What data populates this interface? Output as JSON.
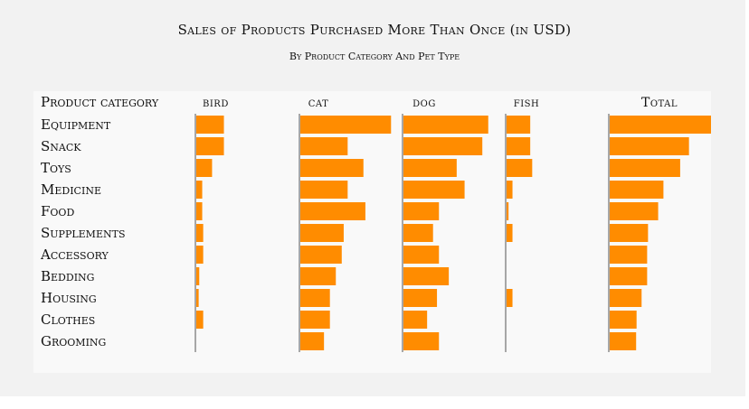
{
  "title": "Sales of Products Purchased More Than Once (in USD)",
  "subtitle": "By Product Category And Pet Type",
  "colors": {
    "bar": "#ff8c00",
    "axis": "#555555",
    "text": "#111111"
  },
  "chart_data": {
    "type": "bar",
    "orientation": "horizontal",
    "layout": "small-multiples",
    "row_header": "Product category",
    "categories": [
      "Equipment",
      "Snack",
      "Toys",
      "Medicine",
      "Food",
      "Supplements",
      "Accessory",
      "Bedding",
      "Housing",
      "Clothes",
      "Grooming"
    ],
    "series": [
      {
        "name": "bird",
        "values": [
          1400,
          1400,
          800,
          300,
          300,
          350,
          350,
          150,
          120,
          350,
          0
        ]
      },
      {
        "name": "cat",
        "values": [
          4600,
          2400,
          3200,
          2400,
          3300,
          2200,
          2100,
          1800,
          1500,
          1500,
          1200
        ]
      },
      {
        "name": "dog",
        "values": [
          4300,
          4000,
          2700,
          3100,
          1800,
          1500,
          1800,
          2300,
          1700,
          1200,
          1800
        ]
      },
      {
        "name": "fish",
        "values": [
          1200,
          1200,
          1300,
          300,
          100,
          300,
          0,
          0,
          300,
          0,
          0
        ]
      },
      {
        "name": "Total",
        "values": [
          11500,
          9000,
          8000,
          6100,
          5500,
          4350,
          4250,
          4250,
          3620,
          3050,
          3000
        ]
      }
    ],
    "grid": false,
    "legend": "none"
  }
}
